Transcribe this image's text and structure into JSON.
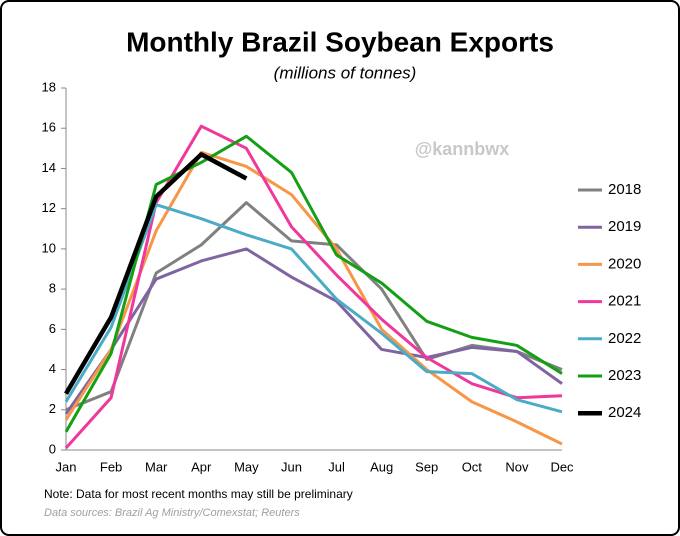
{
  "chart_data": {
    "type": "line",
    "title": "Monthly Brazil Soybean Exports",
    "subtitle": "(millions of tonnes)",
    "watermark": "@kannbwx",
    "note": "Note: Data for most recent months may still be preliminary",
    "source": "Data sources: Brazil Ag Ministry/Comexstat; Reuters",
    "categories": [
      "Jan",
      "Feb",
      "Mar",
      "Apr",
      "May",
      "Jun",
      "Jul",
      "Aug",
      "Sep",
      "Oct",
      "Nov",
      "Dec"
    ],
    "ylim": [
      0,
      18
    ],
    "yticks": [
      0,
      2,
      4,
      6,
      8,
      10,
      12,
      14,
      16,
      18
    ],
    "grid": false,
    "legend": "right",
    "series": [
      {
        "name": "2018",
        "color": "#808080",
        "values": [
          2.0,
          2.9,
          8.8,
          10.2,
          12.3,
          10.4,
          10.2,
          8.0,
          4.5,
          5.2,
          4.9,
          4.0
        ]
      },
      {
        "name": "2019",
        "color": "#8064a2",
        "values": [
          1.8,
          5.0,
          8.5,
          9.4,
          10.0,
          8.6,
          7.4,
          5.0,
          4.6,
          5.1,
          4.9,
          3.3
        ]
      },
      {
        "name": "2020",
        "color": "#f79646",
        "values": [
          1.5,
          5.0,
          10.9,
          14.8,
          14.1,
          12.7,
          10.0,
          6.0,
          4.0,
          2.4,
          1.4,
          0.3
        ]
      },
      {
        "name": "2021",
        "color": "#f0379b",
        "values": [
          0.1,
          2.6,
          12.3,
          16.1,
          15.0,
          11.1,
          8.7,
          6.5,
          4.6,
          3.3,
          2.6,
          2.7
        ]
      },
      {
        "name": "2022",
        "color": "#4bacc6",
        "values": [
          2.4,
          6.1,
          12.2,
          11.5,
          10.7,
          10.0,
          7.5,
          5.8,
          3.9,
          3.8,
          2.5,
          1.9
        ]
      },
      {
        "name": "2023",
        "color": "#14a014",
        "values": [
          0.9,
          4.8,
          13.2,
          14.3,
          15.6,
          13.8,
          9.7,
          8.3,
          6.4,
          5.6,
          5.2,
          3.8
        ]
      },
      {
        "name": "2024",
        "color": "#000000",
        "values": [
          2.8,
          6.6,
          12.6,
          14.7,
          13.5,
          null,
          null,
          null,
          null,
          null,
          null,
          null
        ]
      }
    ]
  }
}
